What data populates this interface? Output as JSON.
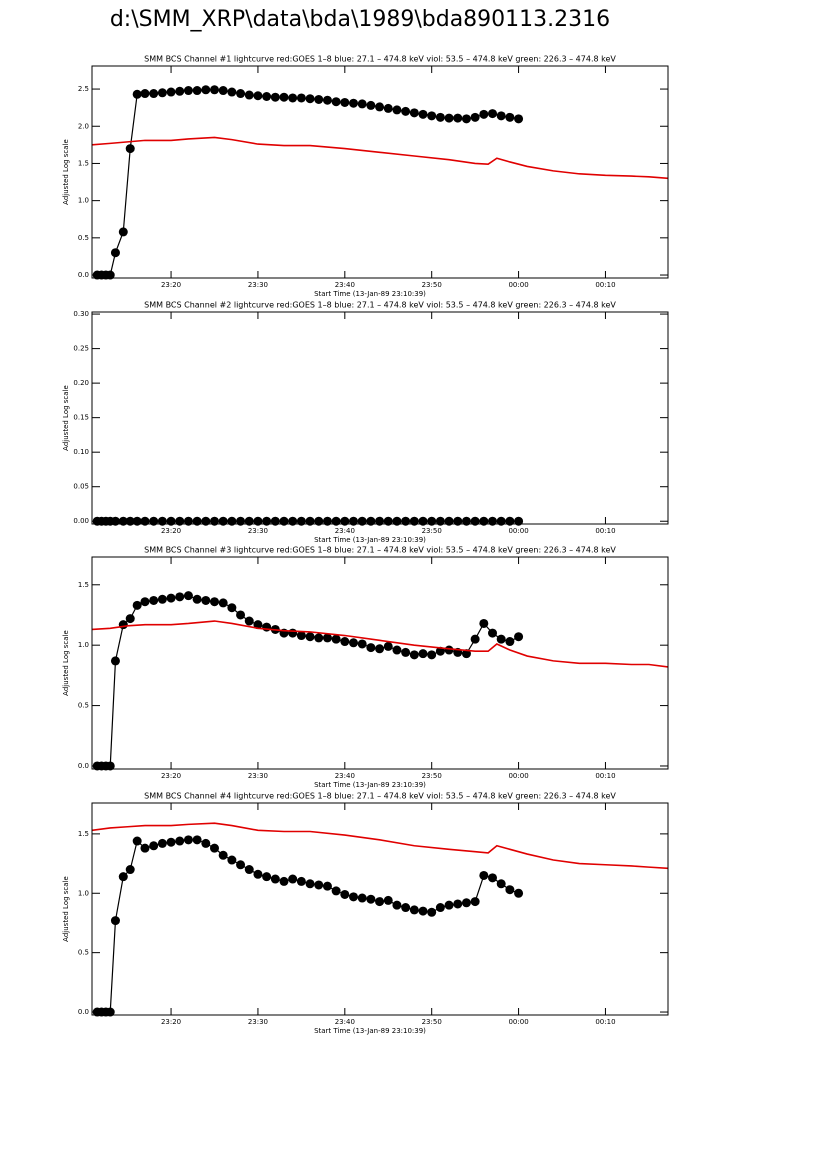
{
  "title": "d:\\SMM_XRP\\data\\bda\\1989\\bda890113.2316",
  "chart_data": [
    {
      "type": "line",
      "title": "SMM BCS Channel #1 lightcurve  red:GOES 1–8  blue: 27.1 – 474.8 keV  viol: 53.5 – 474.8 keV  green: 226.3 – 474.8 keV",
      "xlabel": "Start Time (13-Jan-89 23:10:39)",
      "ylabel": "Adjusted Log scale",
      "xlim": [
        10.9,
        77.2
      ],
      "xticks": [
        {
          "value": 20,
          "label": "23:20"
        },
        {
          "value": 30,
          "label": "23:30"
        },
        {
          "value": 40,
          "label": "23:40"
        },
        {
          "value": 50,
          "label": "23:50"
        },
        {
          "value": 60,
          "label": "00:00"
        },
        {
          "value": 70,
          "label": "00:10"
        }
      ],
      "ylim": [
        -0.04,
        2.81
      ],
      "yticks": [
        {
          "value": 0,
          "label": "0.0"
        },
        0.5,
        {
          "value": 1,
          "label": "1.0"
        },
        1.5,
        {
          "value": 2,
          "label": "2.0"
        },
        2.5
      ],
      "series": [
        {
          "color": "#000000",
          "marker": "circle",
          "x": [
            11.5,
            12,
            12.5,
            13,
            13.6,
            14.5,
            15.3,
            16.1,
            17,
            18,
            19,
            20,
            21,
            22,
            23,
            24,
            25,
            26,
            27,
            28,
            29,
            30,
            31,
            32,
            33,
            34,
            35,
            36,
            37,
            38,
            39,
            40,
            41,
            42,
            43,
            44,
            45,
            46,
            47,
            48,
            49,
            50,
            51,
            52,
            53,
            54,
            55,
            56,
            57,
            58,
            59,
            60
          ],
          "values": [
            0,
            0,
            0,
            0,
            0.3,
            0.58,
            1.7,
            2.43,
            2.44,
            2.44,
            2.45,
            2.46,
            2.47,
            2.48,
            2.48,
            2.49,
            2.49,
            2.48,
            2.46,
            2.44,
            2.42,
            2.41,
            2.4,
            2.39,
            2.39,
            2.38,
            2.38,
            2.37,
            2.36,
            2.35,
            2.33,
            2.32,
            2.31,
            2.3,
            2.28,
            2.26,
            2.24,
            2.22,
            2.2,
            2.18,
            2.16,
            2.14,
            2.12,
            2.11,
            2.11,
            2.1,
            2.12,
            2.16,
            2.17,
            2.14,
            2.12,
            2.1
          ]
        },
        {
          "color": "#e00000",
          "x": [
            10.9,
            13,
            15,
            17,
            20,
            22,
            25,
            27,
            30,
            33,
            36,
            40,
            44,
            48,
            52,
            55,
            56.5,
            57.5,
            59,
            61,
            64,
            67,
            70,
            73,
            75,
            77.2
          ],
          "values": [
            1.75,
            1.77,
            1.79,
            1.81,
            1.81,
            1.83,
            1.85,
            1.82,
            1.76,
            1.74,
            1.74,
            1.7,
            1.65,
            1.6,
            1.55,
            1.5,
            1.49,
            1.57,
            1.52,
            1.46,
            1.4,
            1.36,
            1.34,
            1.33,
            1.32,
            1.3
          ]
        }
      ]
    },
    {
      "type": "line",
      "title": "SMM BCS Channel #2 lightcurve  red:GOES 1–8  blue: 27.1 – 474.8 keV  viol: 53.5 – 474.8 keV  green: 226.3 – 474.8 keV",
      "xlabel": "Start Time (13-Jan-89 23:10:39)",
      "ylabel": "Adjusted Log scale",
      "xlim": [
        10.9,
        77.2
      ],
      "xticks": [
        {
          "value": 20,
          "label": "23:20"
        },
        {
          "value": 30,
          "label": "23:30"
        },
        {
          "value": 40,
          "label": "23:40"
        },
        {
          "value": 50,
          "label": "23:50"
        },
        {
          "value": 60,
          "label": "00:00"
        },
        {
          "value": 70,
          "label": "00:10"
        }
      ],
      "ylim": [
        -0.004,
        0.303
      ],
      "yticks": [
        {
          "value": 0,
          "label": "0.00"
        },
        0.05,
        {
          "value": 0.1,
          "label": "0.10"
        },
        0.15,
        {
          "value": 0.2,
          "label": "0.20"
        },
        0.25,
        {
          "value": 0.3,
          "label": "0.30"
        }
      ],
      "series": [
        {
          "color": "#000000",
          "marker": "circle",
          "x": [
            11.5,
            12,
            12.5,
            13,
            13.6,
            14.5,
            15.3,
            16.1,
            17,
            18,
            19,
            20,
            21,
            22,
            23,
            24,
            25,
            26,
            27,
            28,
            29,
            30,
            31,
            32,
            33,
            34,
            35,
            36,
            37,
            38,
            39,
            40,
            41,
            42,
            43,
            44,
            45,
            46,
            47,
            48,
            49,
            50,
            51,
            52,
            53,
            54,
            55,
            56,
            57,
            58,
            59,
            60
          ],
          "values": [
            0,
            0,
            0,
            0,
            0,
            0,
            0,
            0,
            0,
            0,
            0,
            0,
            0,
            0,
            0,
            0,
            0,
            0,
            0,
            0,
            0,
            0,
            0,
            0,
            0,
            0,
            0,
            0,
            0,
            0,
            0,
            0,
            0,
            0,
            0,
            0,
            0,
            0,
            0,
            0,
            0,
            0,
            0,
            0,
            0,
            0,
            0,
            0,
            0,
            0,
            0,
            0
          ]
        }
      ]
    },
    {
      "type": "line",
      "title": "SMM BCS Channel #3 lightcurve  red:GOES 1–8  blue: 27.1 – 474.8 keV  viol: 53.5 – 474.8 keV  green: 226.3 – 474.8 keV",
      "xlabel": "Start Time (13-Jan-89 23:10:39)",
      "ylabel": "Adjusted Log scale",
      "xlim": [
        10.9,
        77.2
      ],
      "xticks": [
        {
          "value": 20,
          "label": "23:20"
        },
        {
          "value": 30,
          "label": "23:30"
        },
        {
          "value": 40,
          "label": "23:40"
        },
        {
          "value": 50,
          "label": "23:50"
        },
        {
          "value": 60,
          "label": "00:00"
        },
        {
          "value": 70,
          "label": "00:10"
        }
      ],
      "ylim": [
        -0.025,
        1.73
      ],
      "yticks": [
        {
          "value": 0,
          "label": "0.0"
        },
        0.5,
        {
          "value": 1,
          "label": "1.0"
        },
        1.5
      ],
      "series": [
        {
          "color": "#000000",
          "marker": "circle",
          "x": [
            11.5,
            12,
            12.5,
            13,
            13.6,
            14.5,
            15.3,
            16.1,
            17,
            18,
            19,
            20,
            21,
            22,
            23,
            24,
            25,
            26,
            27,
            28,
            29,
            30,
            31,
            32,
            33,
            34,
            35,
            36,
            37,
            38,
            39,
            40,
            41,
            42,
            43,
            44,
            45,
            46,
            47,
            48,
            49,
            50,
            51,
            52,
            53,
            54,
            55,
            56,
            57,
            58,
            59,
            60
          ],
          "values": [
            0,
            0,
            0,
            0,
            0.87,
            1.17,
            1.22,
            1.33,
            1.36,
            1.37,
            1.38,
            1.39,
            1.4,
            1.41,
            1.38,
            1.37,
            1.36,
            1.35,
            1.31,
            1.25,
            1.2,
            1.17,
            1.15,
            1.13,
            1.1,
            1.1,
            1.08,
            1.07,
            1.06,
            1.06,
            1.05,
            1.03,
            1.02,
            1.01,
            0.98,
            0.97,
            0.99,
            0.96,
            0.94,
            0.92,
            0.93,
            0.92,
            0.95,
            0.96,
            0.94,
            0.93,
            1.05,
            1.18,
            1.1,
            1.05,
            1.03,
            1.07
          ]
        },
        {
          "color": "#e00000",
          "x": [
            10.9,
            13,
            15,
            17,
            20,
            22,
            25,
            27,
            30,
            33,
            36,
            40,
            44,
            48,
            52,
            55,
            56.5,
            57.5,
            59,
            61,
            64,
            67,
            70,
            73,
            75,
            77.2
          ],
          "values": [
            1.13,
            1.14,
            1.16,
            1.17,
            1.17,
            1.18,
            1.2,
            1.18,
            1.14,
            1.12,
            1.11,
            1.08,
            1.04,
            1.0,
            0.97,
            0.95,
            0.95,
            1.01,
            0.96,
            0.91,
            0.87,
            0.85,
            0.85,
            0.84,
            0.84,
            0.82
          ]
        }
      ]
    },
    {
      "type": "line",
      "title": "SMM BCS Channel #4 lightcurve  red:GOES 1–8  blue: 27.1 – 474.8 keV  viol: 53.5 – 474.8 keV  green: 226.3 – 474.8 keV",
      "xlabel": "Start Time (13-Jan-89 23:10:39)",
      "ylabel": "Adjusted Log scale",
      "xlim": [
        10.9,
        77.2
      ],
      "xticks": [
        {
          "value": 20,
          "label": "23:20"
        },
        {
          "value": 30,
          "label": "23:30"
        },
        {
          "value": 40,
          "label": "23:40"
        },
        {
          "value": 50,
          "label": "23:50"
        },
        {
          "value": 60,
          "label": "00:00"
        },
        {
          "value": 70,
          "label": "00:10"
        }
      ],
      "ylim": [
        -0.025,
        1.76
      ],
      "yticks": [
        {
          "value": 0,
          "label": "0.0"
        },
        0.5,
        {
          "value": 1,
          "label": "1.0"
        },
        1.5
      ],
      "series": [
        {
          "color": "#000000",
          "marker": "circle",
          "x": [
            11.5,
            12,
            12.5,
            13,
            13.6,
            14.5,
            15.3,
            16.1,
            17,
            18,
            19,
            20,
            21,
            22,
            23,
            24,
            25,
            26,
            27,
            28,
            29,
            30,
            31,
            32,
            33,
            34,
            35,
            36,
            37,
            38,
            39,
            40,
            41,
            42,
            43,
            44,
            45,
            46,
            47,
            48,
            49,
            50,
            51,
            52,
            53,
            54,
            55,
            56,
            57,
            58,
            59,
            60
          ],
          "values": [
            0,
            0,
            0,
            0,
            0.77,
            1.14,
            1.2,
            1.44,
            1.38,
            1.4,
            1.42,
            1.43,
            1.44,
            1.45,
            1.45,
            1.42,
            1.38,
            1.32,
            1.28,
            1.24,
            1.2,
            1.16,
            1.14,
            1.12,
            1.1,
            1.12,
            1.1,
            1.08,
            1.07,
            1.06,
            1.02,
            0.99,
            0.97,
            0.96,
            0.95,
            0.93,
            0.94,
            0.9,
            0.88,
            0.86,
            0.85,
            0.84,
            0.88,
            0.9,
            0.91,
            0.92,
            0.93,
            1.15,
            1.13,
            1.08,
            1.03,
            1.0
          ]
        },
        {
          "color": "#e00000",
          "x": [
            10.9,
            13,
            15,
            17,
            20,
            22,
            25,
            27,
            30,
            33,
            36,
            40,
            44,
            48,
            52,
            55,
            56.5,
            57.5,
            59,
            61,
            64,
            67,
            70,
            73,
            75,
            77.2
          ],
          "values": [
            1.53,
            1.55,
            1.56,
            1.57,
            1.57,
            1.58,
            1.59,
            1.57,
            1.53,
            1.52,
            1.52,
            1.49,
            1.45,
            1.4,
            1.37,
            1.35,
            1.34,
            1.4,
            1.37,
            1.33,
            1.28,
            1.25,
            1.24,
            1.23,
            1.22,
            1.21
          ]
        }
      ]
    }
  ]
}
